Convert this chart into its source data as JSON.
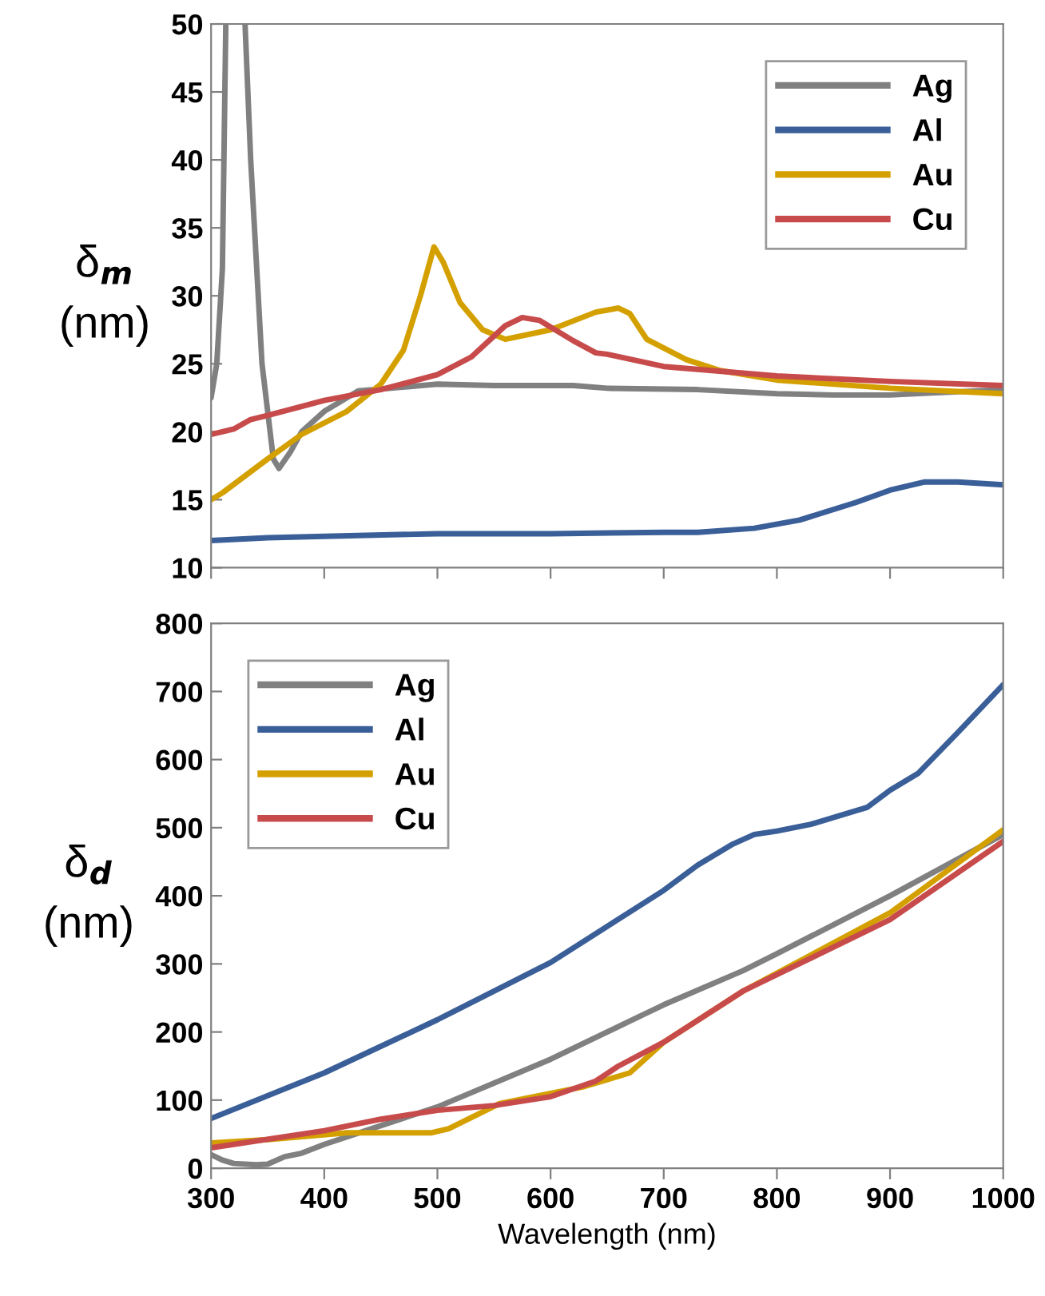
{
  "chart_data": [
    {
      "type": "line",
      "ylabel": "δ$_{m}$\n(nm)",
      "xlim": [
        300,
        1000
      ],
      "xticks": [
        300,
        400,
        500,
        600,
        700,
        800,
        900,
        1000
      ],
      "ylim": [
        10,
        50
      ],
      "yticks": [
        10,
        15,
        20,
        25,
        30,
        35,
        40,
        45,
        50
      ],
      "tick_labels": "y",
      "grid": false,
      "legend": "top right",
      "marker": "none",
      "line_style": "solid",
      "series": [
        {
          "name": "Ag",
          "color": "#808080",
          "x": [
            300,
            305,
            310,
            313,
            322,
            330,
            335,
            345,
            355,
            360,
            370,
            380,
            400,
            430,
            500,
            550,
            620,
            650,
            730,
            800,
            850,
            900,
            1000
          ],
          "values": [
            22.5,
            25,
            32,
            50,
            null,
            50,
            40,
            25,
            18,
            17.3,
            18.5,
            20,
            21.5,
            23,
            23.5,
            23.4,
            23.4,
            23.2,
            23.1,
            22.8,
            22.7,
            22.7,
            23.1
          ]
        },
        {
          "name": "Al",
          "color": "#3a5f98",
          "x": [
            300,
            350,
            400,
            500,
            600,
            700,
            730,
            780,
            820,
            870,
            900,
            930,
            960,
            1000
          ],
          "values": [
            12,
            12.2,
            12.3,
            12.5,
            12.5,
            12.6,
            12.6,
            12.9,
            13.5,
            14.8,
            15.7,
            16.3,
            16.3,
            16.1
          ]
        },
        {
          "name": "Au",
          "color": "#d4a000",
          "x": [
            300,
            310,
            350,
            380,
            420,
            450,
            470,
            485,
            497,
            505,
            520,
            540,
            560,
            600,
            640,
            660,
            670,
            685,
            720,
            750,
            800,
            900,
            1000
          ],
          "values": [
            15,
            15.5,
            18,
            19.8,
            21.5,
            23.5,
            26,
            30,
            33.6,
            32.5,
            29.5,
            27.5,
            26.8,
            27.5,
            28.8,
            29.1,
            28.7,
            26.8,
            25.3,
            24.5,
            23.8,
            23.2,
            22.8
          ]
        },
        {
          "name": "Cu",
          "color": "#c84b4b",
          "x": [
            300,
            315,
            320,
            335,
            350,
            400,
            450,
            500,
            530,
            560,
            575,
            590,
            620,
            640,
            650,
            700,
            800,
            900,
            1000
          ],
          "values": [
            19.8,
            20.1,
            20.2,
            20.9,
            21.2,
            22.3,
            23.1,
            24.2,
            25.5,
            27.8,
            28.4,
            28.2,
            26.7,
            25.8,
            25.7,
            24.8,
            24.1,
            23.7,
            23.4
          ]
        }
      ]
    },
    {
      "type": "line",
      "ylabel": "δ$_{d}$\n(nm)",
      "xlabel": "Wavelength (nm)",
      "xlim": [
        300,
        1000
      ],
      "xticks": [
        300,
        400,
        500,
        600,
        700,
        800,
        900,
        1000
      ],
      "ylim": [
        0,
        800
      ],
      "yticks": [
        0,
        100,
        200,
        300,
        400,
        500,
        600,
        700,
        800
      ],
      "grid": false,
      "legend": "top left",
      "marker": "none",
      "line_style": "solid",
      "series": [
        {
          "name": "Ag",
          "color": "#808080",
          "x": [
            300,
            310,
            320,
            340,
            350,
            365,
            380,
            400,
            500,
            600,
            700,
            770,
            800,
            900,
            1000
          ],
          "values": [
            20,
            12,
            7,
            5,
            6,
            17,
            22,
            35,
            90,
            160,
            240,
            290,
            315,
            400,
            490
          ]
        },
        {
          "name": "Al",
          "color": "#3a5f98",
          "x": [
            300,
            400,
            500,
            600,
            700,
            730,
            760,
            780,
            800,
            830,
            880,
            900,
            925,
            960,
            1000
          ],
          "values": [
            73,
            140,
            218,
            302,
            408,
            445,
            475,
            490,
            495,
            505,
            530,
            555,
            580,
            640,
            710
          ]
        },
        {
          "name": "Au",
          "color": "#d4a000",
          "x": [
            300,
            350,
            420,
            450,
            495,
            510,
            555,
            600,
            630,
            670,
            700,
            770,
            900,
            1000
          ],
          "values": [
            37,
            42,
            52,
            52,
            52,
            58,
            95,
            110,
            120,
            140,
            185,
            260,
            375,
            497
          ]
        },
        {
          "name": "Cu",
          "color": "#c84b4b",
          "x": [
            300,
            400,
            450,
            500,
            550,
            600,
            640,
            660,
            700,
            770,
            900,
            1000
          ],
          "values": [
            30,
            55,
            72,
            85,
            92,
            105,
            128,
            150,
            185,
            260,
            365,
            480
          ]
        }
      ]
    }
  ]
}
